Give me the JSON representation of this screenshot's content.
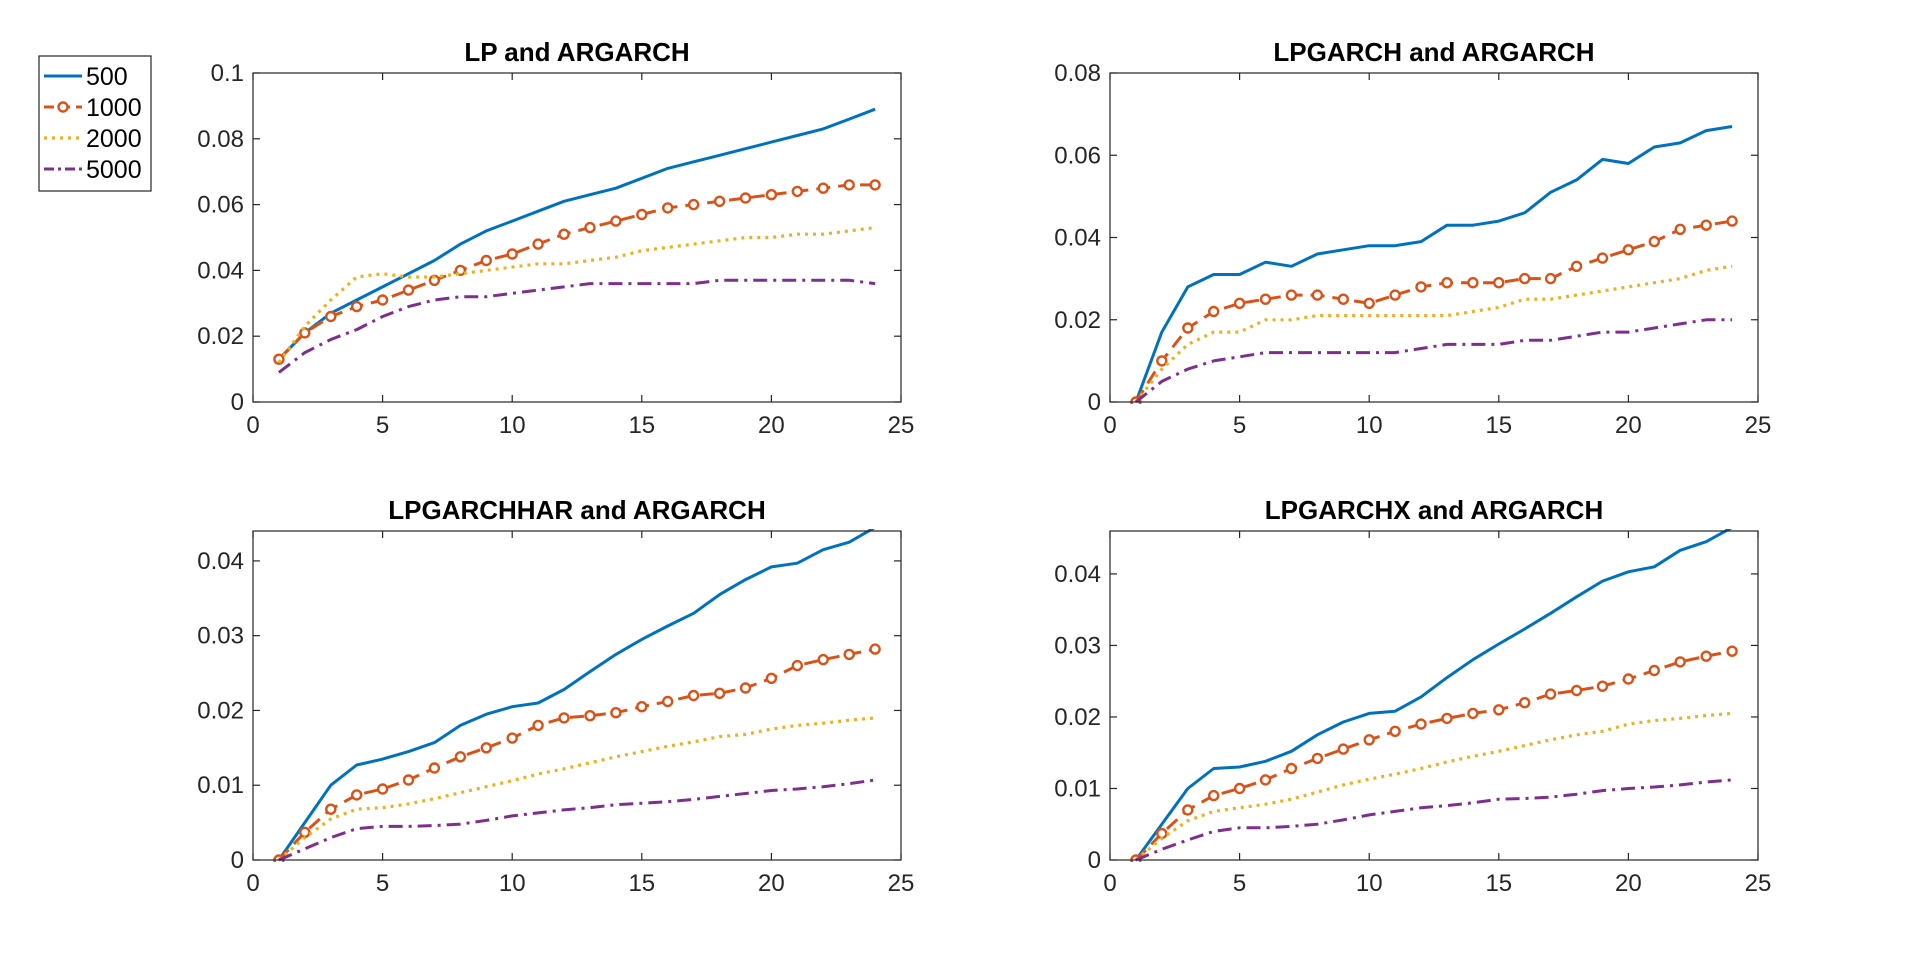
{
  "colors": {
    "500": "#0072BD",
    "1000": "#D95319",
    "2000": "#EDB120",
    "5000": "#7E2F8E",
    "axes": "#262626",
    "background": "#ffffff"
  },
  "legend": {
    "placement": "outside-top-left",
    "entries": [
      {
        "label": "500",
        "style": "solid",
        "color": "#0072BD"
      },
      {
        "label": "1000",
        "style": "dashed-circle",
        "color": "#D95319"
      },
      {
        "label": "2000",
        "style": "dotted",
        "color": "#EDB120"
      },
      {
        "label": "5000",
        "style": "dash-dot",
        "color": "#7E2F8E"
      }
    ]
  },
  "chart_data": [
    {
      "type": "line",
      "title": "LP and ARGARCH",
      "xlabel": "",
      "ylabel": "",
      "xlim": [
        0,
        25
      ],
      "ylim": [
        0,
        0.1
      ],
      "xticks": [
        0,
        5,
        10,
        15,
        20,
        25
      ],
      "yticks": [
        0,
        0.02,
        0.04,
        0.06,
        0.08,
        0.1
      ],
      "xtick_labels": [
        "0",
        "5",
        "10",
        "15",
        "20",
        "25"
      ],
      "ytick_labels": [
        "0",
        "0.02",
        "0.04",
        "0.06",
        "0.08",
        "0.1"
      ],
      "grid": false,
      "x": [
        1,
        2,
        3,
        4,
        5,
        6,
        7,
        8,
        9,
        10,
        11,
        12,
        13,
        14,
        15,
        16,
        17,
        18,
        19,
        20,
        21,
        22,
        23,
        24
      ],
      "series": [
        {
          "name": "500",
          "values": [
            0.013,
            0.021,
            0.027,
            0.031,
            0.035,
            0.039,
            0.043,
            0.048,
            0.052,
            0.055,
            0.058,
            0.061,
            0.063,
            0.065,
            0.068,
            0.071,
            0.073,
            0.075,
            0.077,
            0.079,
            0.081,
            0.083,
            0.086,
            0.089
          ]
        },
        {
          "name": "1000",
          "values": [
            0.013,
            0.021,
            0.026,
            0.029,
            0.031,
            0.034,
            0.037,
            0.04,
            0.043,
            0.045,
            0.048,
            0.051,
            0.053,
            0.055,
            0.057,
            0.059,
            0.06,
            0.061,
            0.062,
            0.063,
            0.064,
            0.065,
            0.066,
            0.066
          ]
        },
        {
          "name": "2000",
          "values": [
            0.012,
            0.023,
            0.031,
            0.038,
            0.039,
            0.038,
            0.038,
            0.039,
            0.04,
            0.041,
            0.042,
            0.042,
            0.043,
            0.044,
            0.046,
            0.047,
            0.048,
            0.049,
            0.05,
            0.05,
            0.051,
            0.051,
            0.052,
            0.053
          ]
        },
        {
          "name": "5000",
          "values": [
            0.009,
            0.015,
            0.019,
            0.022,
            0.026,
            0.029,
            0.031,
            0.032,
            0.032,
            0.033,
            0.034,
            0.035,
            0.036,
            0.036,
            0.036,
            0.036,
            0.036,
            0.037,
            0.037,
            0.037,
            0.037,
            0.037,
            0.037,
            0.036
          ]
        }
      ]
    },
    {
      "type": "line",
      "title": "LPGARCH and ARGARCH",
      "xlabel": "",
      "ylabel": "",
      "xlim": [
        0,
        25
      ],
      "ylim": [
        0,
        0.08
      ],
      "xticks": [
        0,
        5,
        10,
        15,
        20,
        25
      ],
      "yticks": [
        0,
        0.02,
        0.04,
        0.06,
        0.08
      ],
      "xtick_labels": [
        "0",
        "5",
        "10",
        "15",
        "20",
        "25"
      ],
      "ytick_labels": [
        "0",
        "0.02",
        "0.04",
        "0.06",
        "0.08"
      ],
      "grid": false,
      "x": [
        1,
        2,
        3,
        4,
        5,
        6,
        7,
        8,
        9,
        10,
        11,
        12,
        13,
        14,
        15,
        16,
        17,
        18,
        19,
        20,
        21,
        22,
        23,
        24
      ],
      "series": [
        {
          "name": "500",
          "values": [
            0.0,
            0.017,
            0.028,
            0.031,
            0.031,
            0.034,
            0.033,
            0.036,
            0.037,
            0.038,
            0.038,
            0.039,
            0.043,
            0.043,
            0.044,
            0.046,
            0.051,
            0.054,
            0.059,
            0.058,
            0.062,
            0.063,
            0.066,
            0.067
          ]
        },
        {
          "name": "1000",
          "values": [
            0.0,
            0.01,
            0.018,
            0.022,
            0.024,
            0.025,
            0.026,
            0.026,
            0.025,
            0.024,
            0.026,
            0.028,
            0.029,
            0.029,
            0.029,
            0.03,
            0.03,
            0.033,
            0.035,
            0.037,
            0.039,
            0.042,
            0.043,
            0.044
          ]
        },
        {
          "name": "2000",
          "values": [
            0.0,
            0.008,
            0.014,
            0.017,
            0.017,
            0.02,
            0.02,
            0.021,
            0.021,
            0.021,
            0.021,
            0.021,
            0.021,
            0.022,
            0.023,
            0.025,
            0.025,
            0.026,
            0.027,
            0.028,
            0.029,
            0.03,
            0.032,
            0.033
          ]
        },
        {
          "name": "5000",
          "values": [
            0.0,
            0.005,
            0.008,
            0.01,
            0.011,
            0.012,
            0.012,
            0.012,
            0.012,
            0.012,
            0.012,
            0.013,
            0.014,
            0.014,
            0.014,
            0.015,
            0.015,
            0.016,
            0.017,
            0.017,
            0.018,
            0.019,
            0.02,
            0.02
          ]
        }
      ]
    },
    {
      "type": "line",
      "title": "LPGARCHHAR and ARGARCH",
      "xlabel": "",
      "ylabel": "",
      "xlim": [
        0,
        25
      ],
      "ylim": [
        0,
        0.044
      ],
      "xticks": [
        0,
        5,
        10,
        15,
        20,
        25
      ],
      "yticks": [
        0,
        0.01,
        0.02,
        0.03,
        0.04
      ],
      "xtick_labels": [
        "0",
        "5",
        "10",
        "15",
        "20",
        "25"
      ],
      "ytick_labels": [
        "0",
        "0.01",
        "0.02",
        "0.03",
        "0.04"
      ],
      "grid": false,
      "x": [
        1,
        2,
        3,
        4,
        5,
        6,
        7,
        8,
        9,
        10,
        11,
        12,
        13,
        14,
        15,
        16,
        17,
        18,
        19,
        20,
        21,
        22,
        23,
        24
      ],
      "series": [
        {
          "name": "500",
          "values": [
            0.0,
            0.005,
            0.01,
            0.0127,
            0.0135,
            0.0145,
            0.0157,
            0.018,
            0.0195,
            0.0205,
            0.021,
            0.0228,
            0.0252,
            0.0275,
            0.0295,
            0.0313,
            0.033,
            0.0355,
            0.0375,
            0.0392,
            0.0397,
            0.0415,
            0.0425,
            0.0445
          ]
        },
        {
          "name": "1000",
          "values": [
            0.0,
            0.0037,
            0.0068,
            0.0087,
            0.0095,
            0.0107,
            0.0123,
            0.0138,
            0.015,
            0.0163,
            0.018,
            0.019,
            0.0193,
            0.0197,
            0.0205,
            0.0212,
            0.022,
            0.0223,
            0.023,
            0.0243,
            0.026,
            0.0268,
            0.0275,
            0.0282
          ]
        },
        {
          "name": "2000",
          "values": [
            0.0,
            0.003,
            0.0055,
            0.0068,
            0.007,
            0.0075,
            0.0082,
            0.009,
            0.0098,
            0.0106,
            0.0115,
            0.0122,
            0.013,
            0.0138,
            0.0145,
            0.0152,
            0.0158,
            0.0165,
            0.0168,
            0.0175,
            0.018,
            0.0183,
            0.0187,
            0.019
          ]
        },
        {
          "name": "5000",
          "values": [
            0.0,
            0.0015,
            0.003,
            0.0042,
            0.0045,
            0.0045,
            0.0046,
            0.0048,
            0.0053,
            0.0059,
            0.0063,
            0.0067,
            0.007,
            0.0074,
            0.0076,
            0.0078,
            0.0081,
            0.0085,
            0.0089,
            0.0093,
            0.0095,
            0.0098,
            0.0102,
            0.0107
          ]
        }
      ]
    },
    {
      "type": "line",
      "title": "LPGARCHX and ARGARCH",
      "xlabel": "",
      "ylabel": "",
      "xlim": [
        0,
        25
      ],
      "ylim": [
        0,
        0.046
      ],
      "xticks": [
        0,
        5,
        10,
        15,
        20,
        25
      ],
      "yticks": [
        0,
        0.01,
        0.02,
        0.03,
        0.04
      ],
      "xtick_labels": [
        "0",
        "5",
        "10",
        "15",
        "20",
        "25"
      ],
      "ytick_labels": [
        "0",
        "0.01",
        "0.02",
        "0.03",
        "0.04"
      ],
      "grid": false,
      "x": [
        1,
        2,
        3,
        4,
        5,
        6,
        7,
        8,
        9,
        10,
        11,
        12,
        13,
        14,
        15,
        16,
        17,
        18,
        19,
        20,
        21,
        22,
        23,
        24
      ],
      "series": [
        {
          "name": "500",
          "values": [
            0.0,
            0.005,
            0.01,
            0.0128,
            0.013,
            0.0138,
            0.0152,
            0.0175,
            0.0193,
            0.0205,
            0.0208,
            0.0228,
            0.0255,
            0.028,
            0.0302,
            0.0323,
            0.0345,
            0.0368,
            0.039,
            0.0403,
            0.041,
            0.0433,
            0.0445,
            0.0465
          ]
        },
        {
          "name": "1000",
          "values": [
            0.0,
            0.0037,
            0.007,
            0.009,
            0.01,
            0.0112,
            0.0128,
            0.0142,
            0.0155,
            0.0168,
            0.018,
            0.019,
            0.0198,
            0.0205,
            0.021,
            0.022,
            0.0232,
            0.0237,
            0.0243,
            0.0253,
            0.0265,
            0.0277,
            0.0285,
            0.0292
          ]
        },
        {
          "name": "2000",
          "values": [
            0.0,
            0.003,
            0.0055,
            0.0068,
            0.0073,
            0.0078,
            0.0085,
            0.0095,
            0.0105,
            0.0113,
            0.012,
            0.0128,
            0.0137,
            0.0145,
            0.0152,
            0.016,
            0.0168,
            0.0175,
            0.018,
            0.019,
            0.0195,
            0.0198,
            0.0202,
            0.0205
          ]
        },
        {
          "name": "5000",
          "values": [
            0.0,
            0.0015,
            0.0028,
            0.004,
            0.0045,
            0.0045,
            0.0047,
            0.005,
            0.0056,
            0.0063,
            0.0068,
            0.0073,
            0.0076,
            0.008,
            0.0085,
            0.0086,
            0.0088,
            0.0092,
            0.0097,
            0.01,
            0.0102,
            0.0105,
            0.0109,
            0.0112
          ]
        }
      ]
    }
  ]
}
